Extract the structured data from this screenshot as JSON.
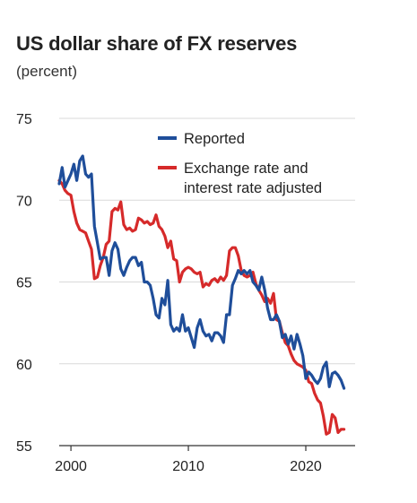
{
  "title": "US dollar share of FX reserves",
  "subtitle": "(percent)",
  "chart_data": {
    "type": "line",
    "title": "US dollar share of FX reserves",
    "subtitle": "(percent)",
    "xlim": [
      1999.0,
      2024.2
    ],
    "ylim": [
      55,
      75
    ],
    "xticks": [
      2000,
      2010,
      2020
    ],
    "yticks": [
      55,
      60,
      65,
      70,
      75
    ],
    "grid": "horizontal",
    "legend_position": "top-right",
    "series": [
      {
        "name": "Reported",
        "color": "#1f4e9a",
        "points": [
          [
            1999.0,
            71.0
          ],
          [
            1999.25,
            72.0
          ],
          [
            1999.5,
            70.8
          ],
          [
            1999.75,
            71.2
          ],
          [
            2000.0,
            71.6
          ],
          [
            2000.25,
            72.2
          ],
          [
            2000.5,
            71.2
          ],
          [
            2000.75,
            72.4
          ],
          [
            2001.0,
            72.7
          ],
          [
            2001.25,
            71.6
          ],
          [
            2001.5,
            71.4
          ],
          [
            2001.75,
            71.6
          ],
          [
            2002.0,
            68.4
          ],
          [
            2002.25,
            67.4
          ],
          [
            2002.5,
            66.4
          ],
          [
            2002.75,
            66.5
          ],
          [
            2003.0,
            66.5
          ],
          [
            2003.25,
            65.4
          ],
          [
            2003.5,
            66.9
          ],
          [
            2003.75,
            67.4
          ],
          [
            2004.0,
            67.0
          ],
          [
            2004.25,
            65.8
          ],
          [
            2004.5,
            65.4
          ],
          [
            2004.75,
            65.9
          ],
          [
            2005.0,
            66.3
          ],
          [
            2005.25,
            66.5
          ],
          [
            2005.5,
            66.5
          ],
          [
            2005.75,
            66.0
          ],
          [
            2006.0,
            66.2
          ],
          [
            2006.25,
            65.0
          ],
          [
            2006.5,
            65.0
          ],
          [
            2006.75,
            64.8
          ],
          [
            2007.0,
            64.0
          ],
          [
            2007.25,
            63.0
          ],
          [
            2007.5,
            62.8
          ],
          [
            2007.75,
            64.0
          ],
          [
            2008.0,
            63.6
          ],
          [
            2008.25,
            65.1
          ],
          [
            2008.5,
            62.4
          ],
          [
            2008.75,
            62.0
          ],
          [
            2009.0,
            62.2
          ],
          [
            2009.25,
            62.0
          ],
          [
            2009.5,
            63.0
          ],
          [
            2009.75,
            62.0
          ],
          [
            2010.0,
            62.2
          ],
          [
            2010.25,
            61.6
          ],
          [
            2010.5,
            61.0
          ],
          [
            2010.75,
            62.2
          ],
          [
            2011.0,
            62.7
          ],
          [
            2011.25,
            62.0
          ],
          [
            2011.5,
            61.7
          ],
          [
            2011.75,
            61.8
          ],
          [
            2012.0,
            61.4
          ],
          [
            2012.25,
            61.9
          ],
          [
            2012.5,
            61.9
          ],
          [
            2012.75,
            61.7
          ],
          [
            2013.0,
            61.3
          ],
          [
            2013.25,
            63.0
          ],
          [
            2013.5,
            63.0
          ],
          [
            2013.75,
            64.8
          ],
          [
            2014.0,
            65.2
          ],
          [
            2014.25,
            65.7
          ],
          [
            2014.5,
            65.5
          ],
          [
            2014.75,
            65.7
          ],
          [
            2015.0,
            65.5
          ],
          [
            2015.25,
            65.7
          ],
          [
            2015.5,
            65.0
          ],
          [
            2015.75,
            64.8
          ],
          [
            2016.0,
            64.5
          ],
          [
            2016.25,
            65.3
          ],
          [
            2016.5,
            64.5
          ],
          [
            2016.75,
            63.4
          ],
          [
            2017.0,
            62.7
          ],
          [
            2017.25,
            62.7
          ],
          [
            2017.5,
            63.0
          ],
          [
            2017.75,
            62.6
          ],
          [
            2018.0,
            61.6
          ],
          [
            2018.25,
            61.8
          ],
          [
            2018.5,
            61.2
          ],
          [
            2018.75,
            61.7
          ],
          [
            2019.0,
            60.9
          ],
          [
            2019.25,
            61.8
          ],
          [
            2019.5,
            61.2
          ],
          [
            2019.75,
            60.5
          ],
          [
            2020.0,
            59.1
          ],
          [
            2020.25,
            59.5
          ],
          [
            2020.5,
            59.3
          ],
          [
            2020.75,
            59.0
          ],
          [
            2021.0,
            58.8
          ],
          [
            2021.25,
            59.1
          ],
          [
            2021.5,
            59.8
          ],
          [
            2021.75,
            60.1
          ],
          [
            2022.0,
            58.6
          ],
          [
            2022.25,
            59.4
          ],
          [
            2022.5,
            59.5
          ],
          [
            2022.75,
            59.3
          ],
          [
            2023.0,
            59.0
          ],
          [
            2023.25,
            58.5
          ]
        ]
      },
      {
        "name": "Exchange rate and interest rate adjusted",
        "color": "#d62a2a",
        "points": [
          [
            1999.0,
            71.2
          ],
          [
            1999.25,
            71.0
          ],
          [
            1999.5,
            70.6
          ],
          [
            1999.75,
            70.4
          ],
          [
            2000.0,
            70.3
          ],
          [
            2000.25,
            69.3
          ],
          [
            2000.5,
            68.6
          ],
          [
            2000.75,
            68.2
          ],
          [
            2001.0,
            68.1
          ],
          [
            2001.25,
            68.0
          ],
          [
            2001.5,
            67.5
          ],
          [
            2001.75,
            67.0
          ],
          [
            2002.0,
            65.2
          ],
          [
            2002.25,
            65.3
          ],
          [
            2002.5,
            66.0
          ],
          [
            2002.75,
            66.5
          ],
          [
            2003.0,
            67.3
          ],
          [
            2003.25,
            67.5
          ],
          [
            2003.5,
            69.3
          ],
          [
            2003.75,
            69.5
          ],
          [
            2004.0,
            69.4
          ],
          [
            2004.25,
            69.9
          ],
          [
            2004.5,
            68.5
          ],
          [
            2004.75,
            68.2
          ],
          [
            2005.0,
            68.3
          ],
          [
            2005.25,
            68.1
          ],
          [
            2005.5,
            68.2
          ],
          [
            2005.75,
            68.9
          ],
          [
            2006.0,
            68.8
          ],
          [
            2006.25,
            68.6
          ],
          [
            2006.5,
            68.7
          ],
          [
            2006.75,
            68.5
          ],
          [
            2007.0,
            68.6
          ],
          [
            2007.25,
            69.1
          ],
          [
            2007.5,
            68.4
          ],
          [
            2007.75,
            68.2
          ],
          [
            2008.0,
            67.8
          ],
          [
            2008.25,
            67.1
          ],
          [
            2008.5,
            67.5
          ],
          [
            2008.75,
            66.4
          ],
          [
            2009.0,
            66.3
          ],
          [
            2009.25,
            65.0
          ],
          [
            2009.5,
            65.6
          ],
          [
            2009.75,
            65.8
          ],
          [
            2010.0,
            65.9
          ],
          [
            2010.25,
            65.8
          ],
          [
            2010.5,
            65.6
          ],
          [
            2010.75,
            65.5
          ],
          [
            2011.0,
            65.6
          ],
          [
            2011.25,
            64.7
          ],
          [
            2011.5,
            64.9
          ],
          [
            2011.75,
            64.8
          ],
          [
            2012.0,
            65.1
          ],
          [
            2012.25,
            65.2
          ],
          [
            2012.5,
            65.0
          ],
          [
            2012.75,
            65.3
          ],
          [
            2013.0,
            65.1
          ],
          [
            2013.25,
            65.4
          ],
          [
            2013.5,
            66.9
          ],
          [
            2013.75,
            67.1
          ],
          [
            2014.0,
            67.1
          ],
          [
            2014.25,
            66.6
          ],
          [
            2014.5,
            65.7
          ],
          [
            2014.75,
            65.4
          ],
          [
            2015.0,
            65.3
          ],
          [
            2015.25,
            65.4
          ],
          [
            2015.5,
            65.6
          ],
          [
            2015.75,
            64.9
          ],
          [
            2016.0,
            64.5
          ],
          [
            2016.25,
            64.2
          ],
          [
            2016.5,
            63.8
          ],
          [
            2016.75,
            64.0
          ],
          [
            2017.0,
            63.7
          ],
          [
            2017.25,
            64.3
          ],
          [
            2017.5,
            62.7
          ],
          [
            2017.75,
            62.6
          ],
          [
            2018.0,
            61.9
          ],
          [
            2018.25,
            61.3
          ],
          [
            2018.5,
            61.1
          ],
          [
            2018.75,
            60.6
          ],
          [
            2019.0,
            60.2
          ],
          [
            2019.25,
            60.0
          ],
          [
            2019.5,
            59.9
          ],
          [
            2019.75,
            59.8
          ],
          [
            2020.0,
            59.6
          ],
          [
            2020.25,
            58.9
          ],
          [
            2020.5,
            58.8
          ],
          [
            2020.75,
            58.2
          ],
          [
            2021.0,
            57.8
          ],
          [
            2021.25,
            57.6
          ],
          [
            2021.5,
            56.8
          ],
          [
            2021.75,
            55.7
          ],
          [
            2022.0,
            55.8
          ],
          [
            2022.25,
            56.9
          ],
          [
            2022.5,
            56.7
          ],
          [
            2022.75,
            55.8
          ],
          [
            2023.0,
            56.0
          ],
          [
            2023.25,
            56.0
          ]
        ]
      }
    ]
  }
}
